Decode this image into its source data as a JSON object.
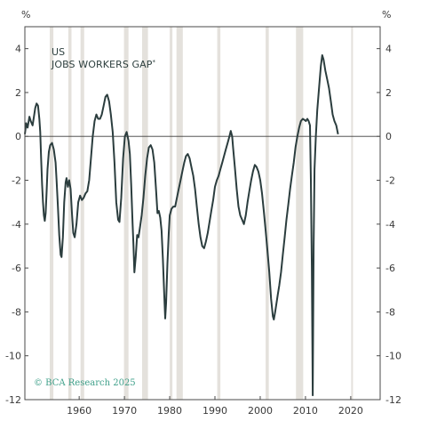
{
  "chart_data": {
    "type": "line",
    "title_line1": "US",
    "title_line2": "JOBS WORKERS GAP",
    "title_marker": "*",
    "unit_left": "%",
    "unit_right": "%",
    "copyright": "© BCA Research 2025",
    "xlabel": "",
    "ylabel": "",
    "xlim": [
      1948,
      2026.5
    ],
    "ylim": [
      -12,
      5
    ],
    "x_ticks": [
      {
        "value": 1960,
        "label": "1960"
      },
      {
        "value": 1970,
        "label": "1970"
      },
      {
        "value": 1980,
        "label": "1980"
      },
      {
        "value": 1990,
        "label": "1990"
      },
      {
        "value": 2000,
        "label": "2000"
      },
      {
        "value": 2010,
        "label": "2010"
      },
      {
        "value": 2020,
        "label": "2020"
      }
    ],
    "y_ticks": [
      {
        "value": 4,
        "label": "4"
      },
      {
        "value": 2,
        "label": "2"
      },
      {
        "value": 0,
        "label": "0"
      },
      {
        "value": -2,
        "label": "-2"
      },
      {
        "value": -4,
        "label": "-4"
      },
      {
        "value": -6,
        "label": "-6"
      },
      {
        "value": -8,
        "label": "-8"
      },
      {
        "value": -10,
        "label": "-10"
      },
      {
        "value": -12,
        "label": "-12"
      }
    ],
    "zero_line": true,
    "grid": false,
    "recessions": [
      [
        1953.5,
        1954.3
      ],
      [
        1957.6,
        1958.3
      ],
      [
        1960.3,
        1961.1
      ],
      [
        1969.9,
        1970.9
      ],
      [
        1973.9,
        1975.2
      ],
      [
        1980.0,
        1980.6
      ],
      [
        1981.5,
        1982.9
      ],
      [
        1990.5,
        1991.2
      ],
      [
        2001.2,
        2001.9
      ],
      [
        2007.9,
        2009.5
      ],
      [
        2020.1,
        2020.4
      ]
    ],
    "colors": {
      "line": "#2b3d3e",
      "recession": "#e4e1dc",
      "axis": "#4a4a4a",
      "zero_line": "#3a3a3a",
      "copyright": "#3fa08a"
    },
    "series": [
      {
        "points": [
          [
            1948.0,
            0.1
          ],
          [
            1948.3,
            0.6
          ],
          [
            1948.6,
            0.4
          ],
          [
            1949.0,
            0.9
          ],
          [
            1949.3,
            0.7
          ],
          [
            1949.7,
            0.5
          ],
          [
            1950.0,
            0.9
          ],
          [
            1950.3,
            1.3
          ],
          [
            1950.6,
            1.5
          ],
          [
            1950.9,
            1.4
          ],
          [
            1951.2,
            0.8
          ],
          [
            1951.4,
            0.2
          ],
          [
            1951.6,
            -1.0
          ],
          [
            1951.8,
            -2.2
          ],
          [
            1952.0,
            -3.0
          ],
          [
            1952.2,
            -3.6
          ],
          [
            1952.4,
            -3.85
          ],
          [
            1952.6,
            -3.5
          ],
          [
            1952.8,
            -2.5
          ],
          [
            1953.0,
            -1.5
          ],
          [
            1953.3,
            -0.7
          ],
          [
            1953.6,
            -0.4
          ],
          [
            1954.0,
            -0.3
          ],
          [
            1954.4,
            -0.6
          ],
          [
            1954.8,
            -1.2
          ],
          [
            1955.0,
            -2.0
          ],
          [
            1955.3,
            -3.2
          ],
          [
            1955.6,
            -4.5
          ],
          [
            1955.9,
            -5.4
          ],
          [
            1956.1,
            -5.5
          ],
          [
            1956.4,
            -4.6
          ],
          [
            1956.7,
            -3.0
          ],
          [
            1957.0,
            -2.1
          ],
          [
            1957.2,
            -1.9
          ],
          [
            1957.5,
            -2.3
          ],
          [
            1957.8,
            -2.0
          ],
          [
            1958.1,
            -2.4
          ],
          [
            1958.4,
            -3.5
          ],
          [
            1958.7,
            -4.4
          ],
          [
            1959.0,
            -4.6
          ],
          [
            1959.4,
            -4.0
          ],
          [
            1959.8,
            -3.0
          ],
          [
            1960.2,
            -2.7
          ],
          [
            1960.6,
            -2.9
          ],
          [
            1961.0,
            -2.8
          ],
          [
            1961.4,
            -2.6
          ],
          [
            1961.8,
            -2.5
          ],
          [
            1962.2,
            -2.0
          ],
          [
            1962.6,
            -1.0
          ],
          [
            1963.0,
            0.0
          ],
          [
            1963.4,
            0.7
          ],
          [
            1963.8,
            1.0
          ],
          [
            1964.2,
            0.8
          ],
          [
            1964.6,
            0.8
          ],
          [
            1965.0,
            1.0
          ],
          [
            1965.4,
            1.4
          ],
          [
            1965.8,
            1.8
          ],
          [
            1966.2,
            1.9
          ],
          [
            1966.6,
            1.6
          ],
          [
            1967.0,
            1.0
          ],
          [
            1967.4,
            0.2
          ],
          [
            1967.8,
            -1.2
          ],
          [
            1968.2,
            -3.0
          ],
          [
            1968.6,
            -3.8
          ],
          [
            1968.9,
            -3.9
          ],
          [
            1969.3,
            -2.8
          ],
          [
            1969.7,
            -1.0
          ],
          [
            1970.1,
            0.0
          ],
          [
            1970.5,
            0.2
          ],
          [
            1970.9,
            -0.2
          ],
          [
            1971.2,
            -0.8
          ],
          [
            1971.5,
            -2.2
          ],
          [
            1971.8,
            -4.0
          ],
          [
            1972.0,
            -5.0
          ],
          [
            1972.2,
            -6.2
          ],
          [
            1972.5,
            -5.5
          ],
          [
            1972.8,
            -4.5
          ],
          [
            1973.1,
            -4.6
          ],
          [
            1973.4,
            -4.2
          ],
          [
            1973.8,
            -3.6
          ],
          [
            1974.2,
            -2.8
          ],
          [
            1974.6,
            -1.8
          ],
          [
            1975.0,
            -1.0
          ],
          [
            1975.4,
            -0.5
          ],
          [
            1975.8,
            -0.4
          ],
          [
            1976.2,
            -0.6
          ],
          [
            1976.6,
            -1.2
          ],
          [
            1977.0,
            -2.5
          ],
          [
            1977.3,
            -3.5
          ],
          [
            1977.6,
            -3.4
          ],
          [
            1977.9,
            -3.7
          ],
          [
            1978.2,
            -4.3
          ],
          [
            1978.5,
            -5.6
          ],
          [
            1978.8,
            -7.2
          ],
          [
            1979.0,
            -8.3
          ],
          [
            1979.2,
            -7.6
          ],
          [
            1979.5,
            -5.8
          ],
          [
            1979.8,
            -4.4
          ],
          [
            1980.0,
            -3.6
          ],
          [
            1980.4,
            -3.3
          ],
          [
            1980.8,
            -3.2
          ],
          [
            1981.2,
            -3.2
          ],
          [
            1981.6,
            -2.8
          ],
          [
            1982.0,
            -2.4
          ],
          [
            1982.4,
            -2.0
          ],
          [
            1982.8,
            -1.6
          ],
          [
            1983.2,
            -1.2
          ],
          [
            1983.6,
            -0.9
          ],
          [
            1984.0,
            -0.8
          ],
          [
            1984.4,
            -1.0
          ],
          [
            1984.8,
            -1.4
          ],
          [
            1985.2,
            -1.8
          ],
          [
            1985.6,
            -2.4
          ],
          [
            1986.0,
            -3.2
          ],
          [
            1986.4,
            -4.0
          ],
          [
            1986.8,
            -4.6
          ],
          [
            1987.2,
            -5.0
          ],
          [
            1987.6,
            -5.1
          ],
          [
            1988.0,
            -4.8
          ],
          [
            1988.4,
            -4.4
          ],
          [
            1988.8,
            -3.9
          ],
          [
            1989.2,
            -3.4
          ],
          [
            1989.6,
            -2.9
          ],
          [
            1990.0,
            -2.3
          ],
          [
            1990.4,
            -2.0
          ],
          [
            1990.8,
            -1.8
          ],
          [
            1991.2,
            -1.5
          ],
          [
            1991.6,
            -1.2
          ],
          [
            1992.0,
            -0.9
          ],
          [
            1992.4,
            -0.6
          ],
          [
            1992.8,
            -0.3
          ],
          [
            1993.2,
            0.0
          ],
          [
            1993.5,
            0.25
          ],
          [
            1993.8,
            0.0
          ],
          [
            1994.0,
            -0.5
          ],
          [
            1994.4,
            -1.4
          ],
          [
            1994.8,
            -2.4
          ],
          [
            1995.2,
            -3.2
          ],
          [
            1995.6,
            -3.6
          ],
          [
            1996.0,
            -3.8
          ],
          [
            1996.4,
            -4.0
          ],
          [
            1996.8,
            -3.6
          ],
          [
            1997.2,
            -3.0
          ],
          [
            1997.6,
            -2.5
          ],
          [
            1998.0,
            -2.0
          ],
          [
            1998.4,
            -1.6
          ],
          [
            1998.8,
            -1.3
          ],
          [
            1999.2,
            -1.4
          ],
          [
            1999.6,
            -1.6
          ],
          [
            2000.0,
            -2.0
          ],
          [
            2000.4,
            -2.6
          ],
          [
            2000.8,
            -3.4
          ],
          [
            2001.2,
            -4.3
          ],
          [
            2001.6,
            -5.2
          ],
          [
            2002.0,
            -6.2
          ],
          [
            2002.4,
            -7.4
          ],
          [
            2002.8,
            -8.2
          ],
          [
            2003.0,
            -8.35
          ],
          [
            2003.3,
            -8.0
          ],
          [
            2003.6,
            -7.6
          ],
          [
            2003.9,
            -7.2
          ],
          [
            2004.2,
            -6.8
          ],
          [
            2004.6,
            -6.2
          ],
          [
            2005.0,
            -5.4
          ],
          [
            2005.4,
            -4.6
          ],
          [
            2005.8,
            -3.8
          ],
          [
            2006.2,
            -3.1
          ],
          [
            2006.6,
            -2.4
          ],
          [
            2007.0,
            -1.8
          ],
          [
            2007.4,
            -1.2
          ],
          [
            2007.8,
            -0.5
          ],
          [
            2008.2,
            0.0
          ],
          [
            2008.6,
            0.4
          ],
          [
            2009.0,
            0.7
          ],
          [
            2009.4,
            0.8
          ],
          [
            2009.8,
            0.75
          ],
          [
            2010.1,
            0.7
          ],
          [
            2010.4,
            0.8
          ],
          [
            2010.7,
            0.7
          ],
          [
            2011.0,
            0.5
          ],
          [
            2011.2,
            -2.0
          ],
          [
            2011.4,
            -6.0
          ],
          [
            2011.6,
            -11.8
          ],
          [
            2011.8,
            -5.0
          ],
          [
            2012.0,
            -1.5
          ],
          [
            2012.3,
            0.0
          ],
          [
            2012.6,
            1.2
          ],
          [
            2013.0,
            2.2
          ],
          [
            2013.4,
            3.2
          ],
          [
            2013.7,
            3.7
          ],
          [
            2014.0,
            3.5
          ],
          [
            2014.4,
            3.0
          ],
          [
            2014.8,
            2.6
          ],
          [
            2015.2,
            2.2
          ],
          [
            2015.6,
            1.6
          ],
          [
            2016.0,
            1.0
          ],
          [
            2016.4,
            0.7
          ],
          [
            2016.8,
            0.5
          ],
          [
            2017.2,
            0.1
          ]
        ]
      }
    ]
  }
}
